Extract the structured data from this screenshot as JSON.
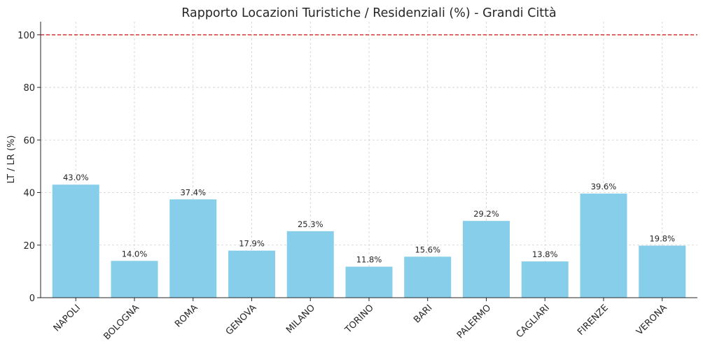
{
  "chart_data": {
    "type": "bar",
    "title": "Rapporto Locazioni Turistiche / Residenziali (%) - Grandi Città",
    "xlabel": "",
    "ylabel": "LT / LR (%)",
    "categories": [
      "NAPOLI",
      "BOLOGNA",
      "ROMA",
      "GENOVA",
      "MILANO",
      "TORINO",
      "BARI",
      "PALERMO",
      "CAGLIARI",
      "FIRENZE",
      "VERONA"
    ],
    "values": [
      43.0,
      14.0,
      37.4,
      17.9,
      25.3,
      11.8,
      15.6,
      29.2,
      13.8,
      39.6,
      19.8
    ],
    "data_labels": [
      "43.0%",
      "14.0%",
      "37.4%",
      "17.9%",
      "25.3%",
      "11.8%",
      "15.6%",
      "29.2%",
      "13.8%",
      "39.6%",
      "19.8%"
    ],
    "ylim": [
      0,
      105
    ],
    "yticks": [
      0,
      20,
      40,
      60,
      80,
      100
    ],
    "reference_line": {
      "y": 100,
      "color": "#d62728",
      "style": "dashed"
    },
    "grid": true,
    "bar_color": "#87ceeb"
  }
}
